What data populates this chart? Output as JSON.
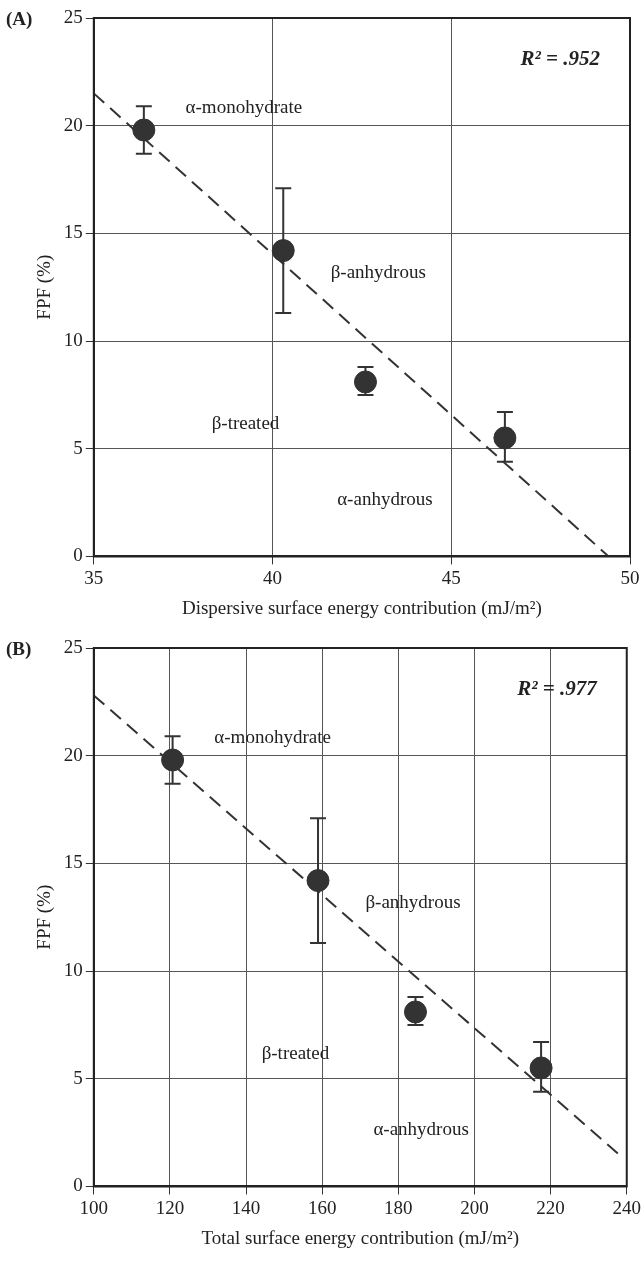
{
  "chart_data": [
    {
      "type": "scatter",
      "title": "(A)",
      "xlabel": "Dispersive surface energy contribution (mJ/m²)",
      "ylabel": "FPF (%)",
      "xlim": [
        35,
        50
      ],
      "xticks": [
        35,
        40,
        45,
        50
      ],
      "ylim": [
        0,
        25
      ],
      "yticks": [
        0,
        5,
        10,
        15,
        20,
        25
      ],
      "grid": true,
      "legend": false,
      "marker": "circle",
      "series": [
        {
          "color": "#333333",
          "x": [
            36.4,
            40.3,
            42.6,
            46.5
          ],
          "values": [
            19.8,
            14.2,
            8.1,
            5.5
          ],
          "errors": [
            [
              18.7,
              20.9
            ],
            [
              11.3,
              17.1
            ],
            [
              7.5,
              8.8
            ],
            [
              4.4,
              6.7
            ]
          ]
        },
        {
          "type": "line",
          "color": "#333333",
          "line_style": "dashed",
          "marker": "none",
          "x": [
            35,
            49.4
          ],
          "values": [
            21.5,
            0
          ]
        }
      ],
      "annotations": [
        "α-monohydrate",
        "β-anhydrous",
        "β-treated",
        "α-anhydrous",
        "R² = .952"
      ]
    },
    {
      "type": "scatter",
      "title": "(B)",
      "xlabel": "Total surface energy contribution (mJ/m²)",
      "ylabel": "FPF (%)",
      "xlim": [
        100,
        240
      ],
      "xticks": [
        100,
        120,
        140,
        160,
        180,
        200,
        220,
        240
      ],
      "ylim": [
        0,
        25
      ],
      "yticks": [
        0,
        5,
        10,
        15,
        20,
        25
      ],
      "grid": true,
      "legend": false,
      "marker": "circle",
      "series": [
        {
          "color": "#333333",
          "x": [
            120.7,
            158.9,
            184.5,
            217.5
          ],
          "values": [
            19.8,
            14.2,
            8.1,
            5.5
          ],
          "errors": [
            [
              18.7,
              20.9
            ],
            [
              11.3,
              17.1
            ],
            [
              7.5,
              8.8
            ],
            [
              4.4,
              6.7
            ]
          ]
        },
        {
          "type": "line",
          "color": "#333333",
          "line_style": "dashed",
          "marker": "none",
          "x": [
            100,
            238.5
          ],
          "values": [
            22.8,
            1.4
          ]
        }
      ],
      "annotations": [
        "α-monohydrate",
        "β-anhydrous",
        "β-treated",
        "α-anhydrous",
        "R² = .977"
      ]
    }
  ]
}
